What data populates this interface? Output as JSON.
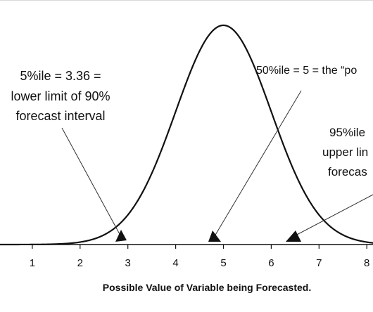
{
  "chart_data": {
    "type": "line",
    "title": "",
    "xlabel": "Possible  Value  of  Variable  being  Forecasted.",
    "ylabel": "",
    "xlim": [
      0.2,
      8.55
    ],
    "ylim": [
      0,
      0.44
    ],
    "grid": false,
    "distribution": {
      "family": "normal",
      "mean": 5,
      "sd": 1
    },
    "x_ticks": [
      1,
      2,
      3,
      4,
      5,
      6,
      7,
      8
    ],
    "markers": [
      {
        "name": "p5",
        "x": 3.36
      },
      {
        "name": "p50",
        "x": 5.0
      },
      {
        "name": "p95",
        "x": 6.64
      }
    ],
    "annotations": [
      {
        "id": "p5",
        "lines": [
          "5%ile  =  3.36  =",
          "lower limit of 90%",
          "forecast interval"
        ]
      },
      {
        "id": "p50",
        "lines": [
          "50%ile = 5 = the “po"
        ]
      },
      {
        "id": "p95",
        "lines": [
          "95%ile",
          "upper lin",
          "forecas"
        ]
      }
    ]
  }
}
